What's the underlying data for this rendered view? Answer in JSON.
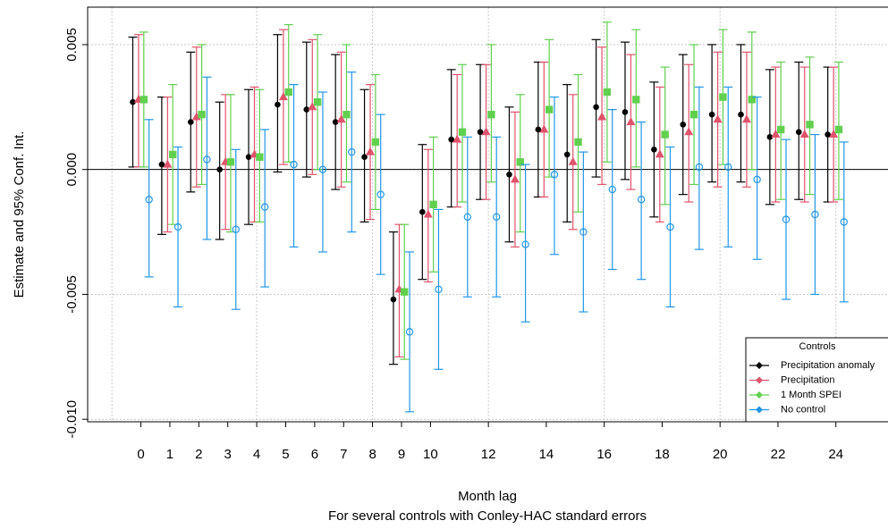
{
  "chart_data": {
    "type": "errorbar",
    "subtitle": "For several controls with Conley-HAC standard errors",
    "x_label": "Month lag",
    "y_label": "Estimate and 95% Conf. Int.",
    "legend_title": "Controls",
    "legend_position": "bottom-right",
    "x": [
      0,
      1,
      2,
      3,
      4,
      5,
      6,
      7,
      8,
      9,
      10,
      11,
      12,
      13,
      14,
      15,
      16,
      17,
      18,
      19,
      20,
      21,
      22,
      23,
      24
    ],
    "xlim": [
      -1.84,
      25.8
    ],
    "xticks": [
      0,
      1,
      2,
      3,
      4,
      5,
      6,
      7,
      8,
      9,
      10,
      12,
      14,
      16,
      18,
      20,
      22,
      24
    ],
    "xgrid": [
      -1,
      4,
      8,
      12,
      16,
      20,
      24
    ],
    "ylim": [
      -0.0101,
      0.0065
    ],
    "yticks": [
      0.005,
      {
        "value": 0,
        "label": "0.000"
      },
      -0.005,
      {
        "value": -0.01,
        "label": "-0.010"
      }
    ],
    "grid": true,
    "reference_line": 0,
    "series": [
      {
        "name": "Precipitation anomaly",
        "color": "#000000",
        "marker": "circle",
        "offset": -0.28,
        "values": [
          0.0027,
          0.0002,
          0.0019,
          0.0,
          0.0005,
          0.0026,
          0.0024,
          0.0019,
          0.0005,
          -0.0052,
          -0.0017,
          0.0012,
          0.0015,
          -0.0002,
          0.0016,
          0.0006,
          0.0025,
          0.0023,
          0.0008,
          0.0018,
          0.0022,
          0.0022,
          0.0013,
          0.0015,
          0.0014
        ],
        "lower": [
          0.0001,
          -0.0026,
          -0.0009,
          -0.0028,
          -0.0022,
          -0.0001,
          -0.0003,
          -0.0008,
          -0.0021,
          -0.0078,
          -0.0044,
          -0.0015,
          -0.0012,
          -0.0029,
          -0.0011,
          -0.0021,
          -0.0003,
          -0.0004,
          -0.0019,
          -0.001,
          -0.0005,
          -0.0005,
          -0.0014,
          -0.0012,
          -0.0013
        ],
        "upper": [
          0.0053,
          0.0029,
          0.0047,
          0.0027,
          0.0032,
          0.0054,
          0.0051,
          0.0046,
          0.0032,
          -0.0025,
          0.001,
          0.004,
          0.0042,
          0.0025,
          0.0043,
          0.0034,
          0.0052,
          0.0051,
          0.0035,
          0.0046,
          0.005,
          0.005,
          0.004,
          0.0043,
          0.0041
        ]
      },
      {
        "name": "Precipitation",
        "color": "#df536b",
        "marker": "triangle",
        "offset": -0.08,
        "values": [
          0.0028,
          0.0002,
          0.0021,
          0.0003,
          0.0006,
          0.0029,
          0.0025,
          0.002,
          0.0007,
          -0.0048,
          -0.0018,
          0.0012,
          0.0015,
          -0.0004,
          0.0016,
          0.0003,
          0.0021,
          0.0019,
          0.0006,
          0.0015,
          0.002,
          0.002,
          0.0014,
          0.0014,
          0.0014
        ],
        "lower": [
          0.0001,
          -0.0025,
          -0.0007,
          -0.0024,
          -0.0021,
          0.0002,
          -0.0002,
          -0.0007,
          -0.002,
          -0.0075,
          -0.0045,
          -0.0015,
          -0.0012,
          -0.0031,
          -0.0011,
          -0.0024,
          -0.0006,
          -0.0008,
          -0.0021,
          -0.0013,
          -0.0007,
          -0.0007,
          -0.0013,
          -0.0013,
          -0.0013
        ],
        "upper": [
          0.0054,
          0.0029,
          0.0049,
          0.003,
          0.0033,
          0.0056,
          0.0052,
          0.0047,
          0.0034,
          -0.0022,
          0.0008,
          0.0038,
          0.0042,
          0.0023,
          0.0043,
          0.003,
          0.0049,
          0.0046,
          0.0033,
          0.0042,
          0.0047,
          0.0047,
          0.0041,
          0.0041,
          0.0041
        ]
      },
      {
        "name": "1 Month SPEI",
        "color": "#61d04f",
        "marker": "square",
        "offset": 0.1,
        "values": [
          0.0028,
          0.0006,
          0.0022,
          0.0003,
          0.0005,
          0.0031,
          0.0027,
          0.0022,
          0.0011,
          -0.0049,
          -0.0014,
          0.0015,
          0.0022,
          0.0003,
          0.0024,
          0.0011,
          0.0031,
          0.0028,
          0.0014,
          0.0022,
          0.0029,
          0.0028,
          0.0016,
          0.0018,
          0.0016
        ],
        "lower": [
          0.0001,
          -0.0022,
          -0.0006,
          -0.0025,
          -0.0021,
          0.0003,
          0.0,
          -0.0005,
          -0.0016,
          -0.0076,
          -0.0041,
          -0.0013,
          -0.0005,
          -0.0025,
          -0.0003,
          -0.0017,
          0.0003,
          0.0001,
          -0.0014,
          -0.0006,
          0.0002,
          0.0,
          -0.0012,
          -0.001,
          -0.0012
        ],
        "upper": [
          0.0055,
          0.0034,
          0.005,
          0.003,
          0.0032,
          0.0058,
          0.0054,
          0.005,
          0.0038,
          -0.0022,
          0.0013,
          0.0042,
          0.005,
          0.003,
          0.0052,
          0.0038,
          0.0059,
          0.0056,
          0.0041,
          0.005,
          0.0056,
          0.0055,
          0.0043,
          0.0045,
          0.0043
        ]
      },
      {
        "name": "No control",
        "color": "#2297e6",
        "marker": "open-circle",
        "offset": 0.28,
        "values": [
          -0.0012,
          -0.0023,
          0.0004,
          -0.0024,
          -0.0015,
          0.0002,
          0.0,
          0.0007,
          -0.001,
          -0.0065,
          -0.0048,
          -0.0019,
          -0.0019,
          -0.003,
          -0.0002,
          -0.0025,
          -0.0008,
          -0.0012,
          -0.0023,
          0.0001,
          0.0001,
          -0.0004,
          -0.002,
          -0.0018,
          -0.0021
        ],
        "lower": [
          -0.0043,
          -0.0055,
          -0.0028,
          -0.0056,
          -0.0047,
          -0.0031,
          -0.0033,
          -0.0025,
          -0.0042,
          -0.0097,
          -0.008,
          -0.0051,
          -0.0051,
          -0.0061,
          -0.0034,
          -0.0057,
          -0.004,
          -0.0044,
          -0.0055,
          -0.0032,
          -0.0031,
          -0.0036,
          -0.0052,
          -0.005,
          -0.0053
        ],
        "upper": [
          0.002,
          0.0009,
          0.0037,
          0.0008,
          0.0016,
          0.0034,
          0.0031,
          0.0039,
          0.0022,
          -0.0033,
          -0.0016,
          0.0013,
          0.0013,
          0.0002,
          0.0029,
          0.0007,
          0.0024,
          0.0019,
          0.0009,
          0.0033,
          0.0033,
          0.0029,
          0.0012,
          0.0014,
          0.0011
        ]
      }
    ]
  }
}
